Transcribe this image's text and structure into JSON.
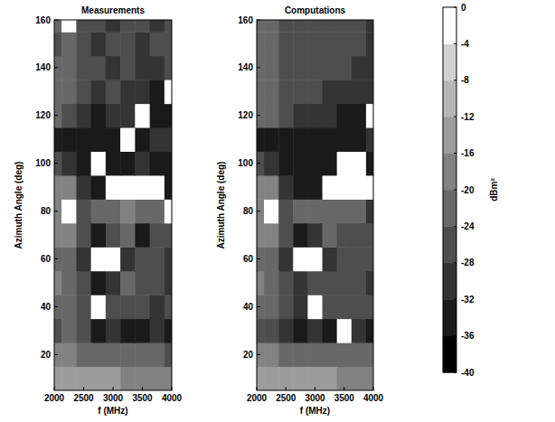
{
  "chart_data": [
    {
      "type": "heatmap",
      "title": "Measurements",
      "x_label": "f (MHz)",
      "y_label": "Azimuth Angle (deg)",
      "x": [
        2000,
        2250,
        2500,
        2750,
        3000,
        3250,
        3500,
        3750,
        4000
      ],
      "y": [
        10,
        20,
        30,
        40,
        50,
        60,
        70,
        80,
        90,
        100,
        110,
        120,
        130,
        140,
        150,
        160
      ],
      "values": [
        [
          -16,
          -14,
          -14,
          -16,
          -16,
          -18,
          -18,
          -20,
          -20
        ],
        [
          -20,
          -20,
          -22,
          -24,
          -24,
          -22,
          -24,
          -24,
          -26
        ],
        [
          -26,
          -24,
          -28,
          -34,
          -30,
          -36,
          -34,
          -30,
          -36
        ],
        [
          -22,
          -24,
          -26,
          -44,
          -28,
          -26,
          -28,
          -30,
          -28
        ],
        [
          -20,
          -22,
          -26,
          -34,
          -30,
          -24,
          -26,
          -28,
          -30
        ],
        [
          -22,
          -24,
          -30,
          -44,
          -42,
          -30,
          -28,
          -26,
          -30
        ],
        [
          -18,
          -20,
          -26,
          -34,
          -28,
          -24,
          -34,
          -28,
          -26
        ],
        [
          -20,
          -44,
          -28,
          -24,
          -22,
          -20,
          -24,
          -22,
          -44
        ],
        [
          -20,
          -18,
          -30,
          -34,
          -44,
          -42,
          -44,
          -44,
          -34
        ],
        [
          -28,
          -30,
          -34,
          -44,
          -36,
          -34,
          -32,
          -34,
          -36
        ],
        [
          -34,
          -36,
          -36,
          -34,
          -36,
          -44,
          -34,
          -32,
          -30
        ],
        [
          -24,
          -26,
          -30,
          -34,
          -32,
          -30,
          -44,
          -36,
          -34
        ],
        [
          -24,
          -22,
          -26,
          -30,
          -28,
          -32,
          -30,
          -34,
          -44
        ],
        [
          -22,
          -24,
          -28,
          -26,
          -30,
          -28,
          -32,
          -30,
          -28
        ],
        [
          -26,
          -24,
          -28,
          -30,
          -26,
          -28,
          -30,
          -26,
          -28
        ],
        [
          -24,
          -44,
          -28,
          -26,
          -30,
          -26,
          -28,
          -30,
          -28
        ]
      ],
      "xlim": [
        2000,
        4000
      ],
      "ylim": [
        5,
        160
      ],
      "xticks": [
        2000,
        2500,
        3000,
        3500,
        4000
      ],
      "yticks": [
        20,
        40,
        60,
        80,
        100,
        120,
        140,
        160
      ]
    },
    {
      "type": "heatmap",
      "title": "Computations",
      "x_label": "f (MHz)",
      "y_label": "Azimuth Angle (deg)",
      "x": [
        2000,
        2250,
        2500,
        2750,
        3000,
        3250,
        3500,
        3750,
        4000
      ],
      "y": [
        10,
        20,
        30,
        40,
        50,
        60,
        70,
        80,
        90,
        100,
        110,
        120,
        130,
        140,
        150,
        160
      ],
      "values": [
        [
          -14,
          -14,
          -14,
          -16,
          -16,
          -16,
          -18,
          -18,
          -18
        ],
        [
          -20,
          -20,
          -22,
          -22,
          -24,
          -22,
          -24,
          -22,
          -24
        ],
        [
          -26,
          -26,
          -30,
          -34,
          -32,
          -36,
          -44,
          -32,
          -34
        ],
        [
          -22,
          -24,
          -26,
          -30,
          -44,
          -28,
          -26,
          -28,
          -28
        ],
        [
          -20,
          -22,
          -26,
          -32,
          -28,
          -26,
          -26,
          -28,
          -30
        ],
        [
          -22,
          -24,
          -30,
          -44,
          -44,
          -30,
          -28,
          -26,
          -28
        ],
        [
          -18,
          -20,
          -26,
          -34,
          -30,
          -24,
          -26,
          -26,
          -26
        ],
        [
          -20,
          -44,
          -28,
          -24,
          -22,
          -22,
          -22,
          -24,
          -30
        ],
        [
          -20,
          -18,
          -30,
          -34,
          -34,
          -44,
          -44,
          -44,
          -44
        ],
        [
          -28,
          -30,
          -34,
          -36,
          -34,
          -36,
          -44,
          -44,
          -34
        ],
        [
          -34,
          -36,
          -36,
          -34,
          -36,
          -34,
          -36,
          -34,
          -32
        ],
        [
          -24,
          -24,
          -28,
          -30,
          -30,
          -32,
          -34,
          -36,
          -44
        ],
        [
          -22,
          -22,
          -26,
          -28,
          -28,
          -30,
          -30,
          -30,
          -32
        ],
        [
          -22,
          -24,
          -26,
          -26,
          -28,
          -28,
          -28,
          -30,
          -30
        ],
        [
          -24,
          -24,
          -26,
          -28,
          -28,
          -28,
          -28,
          -28,
          -30
        ],
        [
          -24,
          -24,
          -26,
          -28,
          -28,
          -28,
          -28,
          -28,
          -30
        ]
      ],
      "xlim": [
        2000,
        4000
      ],
      "ylim": [
        5,
        160
      ],
      "xticks": [
        2000,
        2500,
        3000,
        3500,
        4000
      ],
      "yticks": [
        20,
        40,
        60,
        80,
        100,
        120,
        140,
        160
      ],
      "colorbar_label": "dBm²",
      "colorbar_range": [
        -40,
        0
      ],
      "colorbar_ticks": [
        0,
        -4,
        -8,
        -12,
        -16,
        -20,
        -24,
        -28,
        -32,
        -36,
        -40
      ]
    }
  ]
}
